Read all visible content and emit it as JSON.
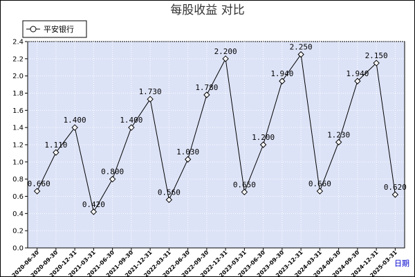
{
  "chart_data": {
    "type": "line",
    "title": "每股收益  对比",
    "categories": [
      "2020-06-30",
      "2020-09-30",
      "2020-12-31",
      "2021-03-31",
      "2021-06-30",
      "2021-09-30",
      "2021-12-31",
      "2022-03-31",
      "2022-06-30",
      "2022-09-30",
      "2022-12-31",
      "2023-03-31",
      "2023-06-30",
      "2023-09-30",
      "2023-12-31",
      "2024-03-31",
      "2024-06-30",
      "2024-09-30",
      "2024-12-31",
      "2025-03-31"
    ],
    "series": [
      {
        "name": "平安银行",
        "values": [
          0.66,
          1.11,
          1.4,
          0.42,
          0.8,
          1.4,
          1.73,
          0.56,
          1.03,
          1.78,
          2.2,
          0.65,
          1.2,
          1.94,
          2.25,
          0.66,
          1.23,
          1.94,
          2.15,
          0.62
        ],
        "labels": [
          "0.660",
          "1.110",
          "1.400",
          "0.420",
          "0.800",
          "1.400",
          "1.730",
          "0.560",
          "1.030",
          "1.780",
          "2.200",
          "0.650",
          "1.200",
          "1.940",
          "2.250",
          "0.660",
          "1.230",
          "1.940",
          "2.150",
          "0.620"
        ],
        "color": "#000000"
      }
    ],
    "ylim": [
      0,
      2.4
    ],
    "yticks": [
      "0.0",
      "0.2",
      "0.4",
      "0.6",
      "0.8",
      "1.0",
      "1.2",
      "1.4",
      "1.6",
      "1.8",
      "2.0",
      "2.2",
      "2.4"
    ],
    "xlabel": "日期",
    "ylabel": "",
    "grid": true,
    "legend_position": "top-left",
    "plot_background": "#dde3f7",
    "grid_color": "#ffffff",
    "label_color": "#0000cc"
  }
}
